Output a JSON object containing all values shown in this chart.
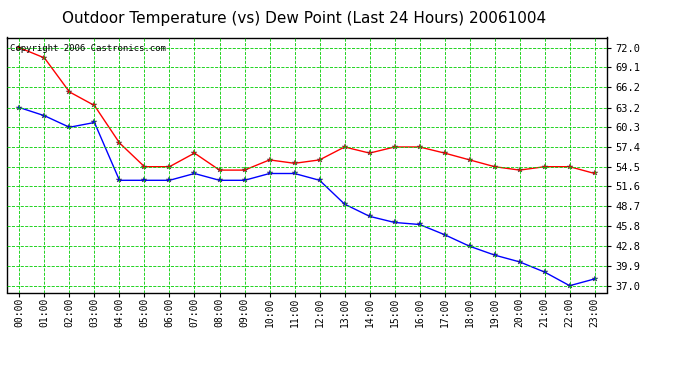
{
  "title": "Outdoor Temperature (vs) Dew Point (Last 24 Hours) 20061004",
  "copyright_text": "Copyright 2006 Castronics.com",
  "x_labels": [
    "00:00",
    "01:00",
    "02:00",
    "03:00",
    "04:00",
    "05:00",
    "06:00",
    "07:00",
    "08:00",
    "09:00",
    "10:00",
    "11:00",
    "12:00",
    "13:00",
    "14:00",
    "15:00",
    "16:00",
    "17:00",
    "18:00",
    "19:00",
    "20:00",
    "21:00",
    "22:00",
    "23:00"
  ],
  "red_line": [
    72.0,
    70.5,
    65.5,
    63.5,
    58.0,
    54.5,
    54.5,
    56.5,
    54.0,
    54.0,
    55.5,
    55.0,
    55.5,
    57.4,
    56.5,
    57.4,
    57.4,
    56.5,
    55.5,
    54.5,
    54.0,
    54.5,
    54.5,
    53.5
  ],
  "blue_line": [
    63.2,
    62.0,
    60.3,
    61.0,
    52.5,
    52.5,
    52.5,
    53.5,
    52.5,
    52.5,
    53.5,
    53.5,
    52.5,
    49.0,
    47.2,
    46.3,
    46.0,
    44.5,
    42.8,
    41.5,
    40.5,
    39.0,
    37.0,
    38.0
  ],
  "y_ticks": [
    37.0,
    39.9,
    42.8,
    45.8,
    48.7,
    51.6,
    54.5,
    57.4,
    60.3,
    63.2,
    66.2,
    69.1,
    72.0
  ],
  "ylim": [
    36.0,
    73.5
  ],
  "bg_color": "#ffffff",
  "plot_bg_color": "#ffffff",
  "grid_color": "#00cc00",
  "red_color": "#ff0000",
  "blue_color": "#0000ff",
  "title_color": "#000000",
  "title_fontsize": 11,
  "copyright_color": "#000000",
  "copyright_fontsize": 6.5
}
